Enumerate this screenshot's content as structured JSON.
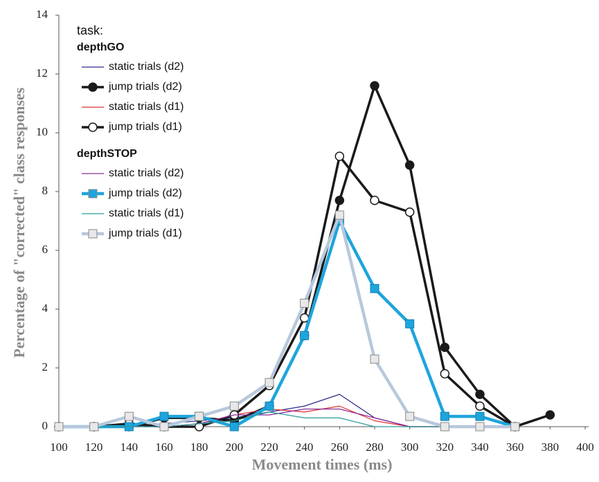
{
  "chart_data": {
    "type": "line",
    "x_label": "Movement times (ms)",
    "y_label": "Percentage of \"corrected\" class responses",
    "legend_title": "task:",
    "legend_position": "upper left",
    "x": [
      100,
      120,
      140,
      160,
      180,
      200,
      220,
      240,
      260,
      280,
      300,
      320,
      340,
      360,
      380
    ],
    "xlim": [
      100,
      400
    ],
    "xticks": [
      100,
      120,
      140,
      160,
      180,
      200,
      220,
      240,
      260,
      280,
      300,
      320,
      340,
      360,
      380,
      400
    ],
    "ylim": [
      0,
      14
    ],
    "yticks": [
      0,
      2,
      4,
      6,
      8,
      10,
      12,
      14
    ],
    "series": [
      {
        "name": "static trials (d2)",
        "group": "depthGO",
        "color": "#2a2a8a",
        "marker": "none",
        "values": [
          0,
          0,
          0,
          0.1,
          0.2,
          0.3,
          0.5,
          0.7,
          1.1,
          0.3,
          0,
          0,
          0,
          0,
          null
        ]
      },
      {
        "name": "jump trials (d2)",
        "group": "depthGO",
        "color": "#1a1a1a",
        "marker": "circle",
        "marker_fill": "#1a1a1a",
        "values": [
          0,
          0,
          0,
          0.3,
          0.3,
          0.2,
          0.7,
          3.1,
          7.7,
          11.6,
          8.9,
          2.7,
          1.1,
          0,
          0.4
        ]
      },
      {
        "name": "static trials (d1)",
        "group": "depthGO",
        "color": "#e03030",
        "marker": "none",
        "values": [
          0,
          0,
          0,
          0,
          0.1,
          0.4,
          0.6,
          0.5,
          0.7,
          0.2,
          0,
          0,
          0,
          0,
          null
        ]
      },
      {
        "name": "jump trials (d1)",
        "group": "depthGO",
        "color": "#1a1a1a",
        "marker": "circle",
        "marker_fill": "#ffffff",
        "values": [
          0,
          0,
          0.1,
          0,
          0,
          0.4,
          1.4,
          3.7,
          9.2,
          7.7,
          7.3,
          1.8,
          0.7,
          0,
          null
        ]
      },
      {
        "name": "static trials (d2)",
        "group": "depthSTOP",
        "color": "#8a2a9a",
        "marker": "none",
        "values": [
          0,
          0,
          0,
          0,
          0.1,
          0.4,
          0.4,
          0.6,
          0.6,
          0.3,
          0,
          0,
          0,
          0,
          null
        ]
      },
      {
        "name": "jump trials (d2)",
        "group": "depthSTOP",
        "color": "#1ea5dc",
        "marker": "square",
        "marker_fill": "#1ea5dc",
        "values": [
          0,
          0,
          0,
          0.35,
          0.35,
          0,
          0.7,
          3.1,
          7.0,
          4.7,
          3.5,
          0.35,
          0.35,
          0,
          null
        ]
      },
      {
        "name": "static trials (d1)",
        "group": "depthSTOP",
        "color": "#2a9a9a",
        "marker": "none",
        "values": [
          0,
          0,
          0,
          0,
          0.1,
          0.2,
          0.5,
          0.3,
          0.3,
          0,
          0,
          0,
          0,
          0,
          null
        ]
      },
      {
        "name": "jump trials (d1)",
        "group": "depthSTOP",
        "color": "#b8c8dc",
        "marker": "square",
        "marker_fill": "#e8e8e8",
        "values": [
          0,
          0,
          0.35,
          0,
          0.35,
          0.7,
          1.5,
          4.2,
          7.2,
          2.3,
          0.35,
          0,
          0,
          0,
          null
        ]
      }
    ]
  }
}
